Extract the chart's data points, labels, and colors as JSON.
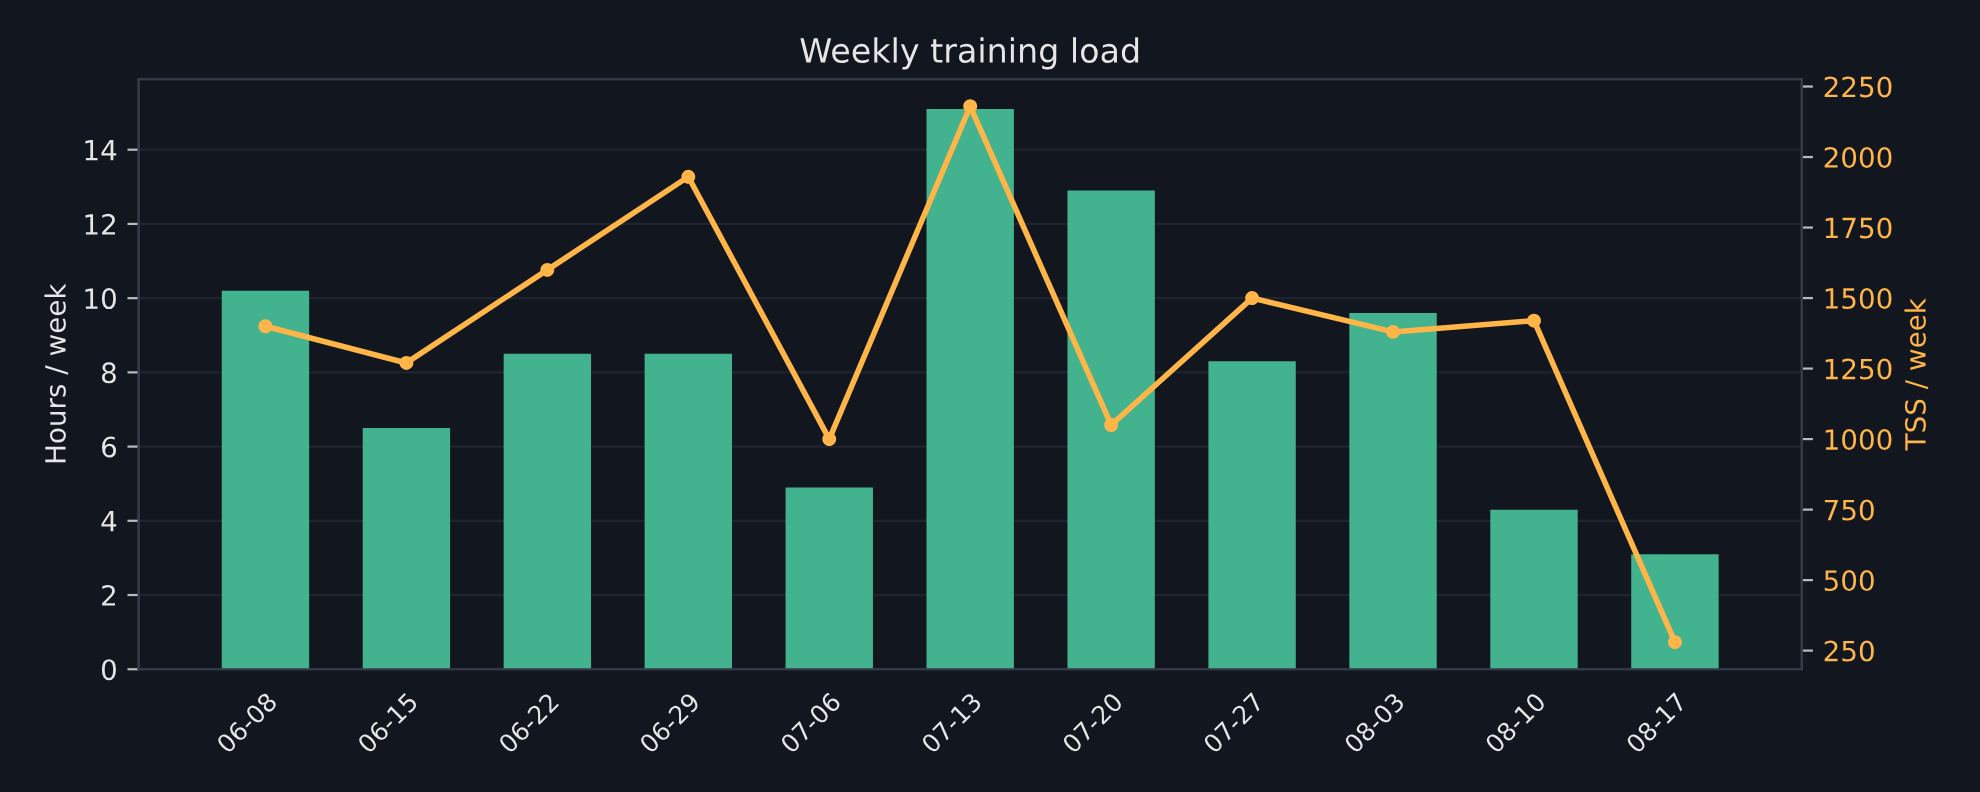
{
  "chart_data": {
    "type": "bar",
    "title": "Weekly training load",
    "categories": [
      "06-08",
      "06-15",
      "06-22",
      "06-29",
      "07-06",
      "07-13",
      "07-20",
      "07-27",
      "08-03",
      "08-10",
      "08-17"
    ],
    "series": [
      {
        "name": null,
        "color": "#43b38f",
        "values": [
          10.2,
          6.5,
          8.5,
          8.5,
          4.9,
          15.1,
          12.9,
          8.3,
          9.6,
          4.3,
          3.1
        ]
      },
      {
        "name": null,
        "type": "line",
        "axis": "y2",
        "color": "#ffb547",
        "marker": "circle",
        "line_style": "solid",
        "values": [
          1400,
          1270,
          1600,
          1930,
          1000,
          2180,
          1050,
          1500,
          1380,
          1420,
          280
        ]
      }
    ],
    "ylabel": "Hours / week",
    "y2label": "TSS / week",
    "ylim": [
      0,
      15.9
    ],
    "yticks": [
      0,
      2,
      4,
      6,
      8,
      10,
      12,
      14
    ],
    "y2lim": [
      184,
      2276
    ],
    "y2ticks": [
      250,
      500,
      750,
      1000,
      1250,
      1500,
      1750,
      2000,
      2250
    ],
    "grid": "y"
  }
}
